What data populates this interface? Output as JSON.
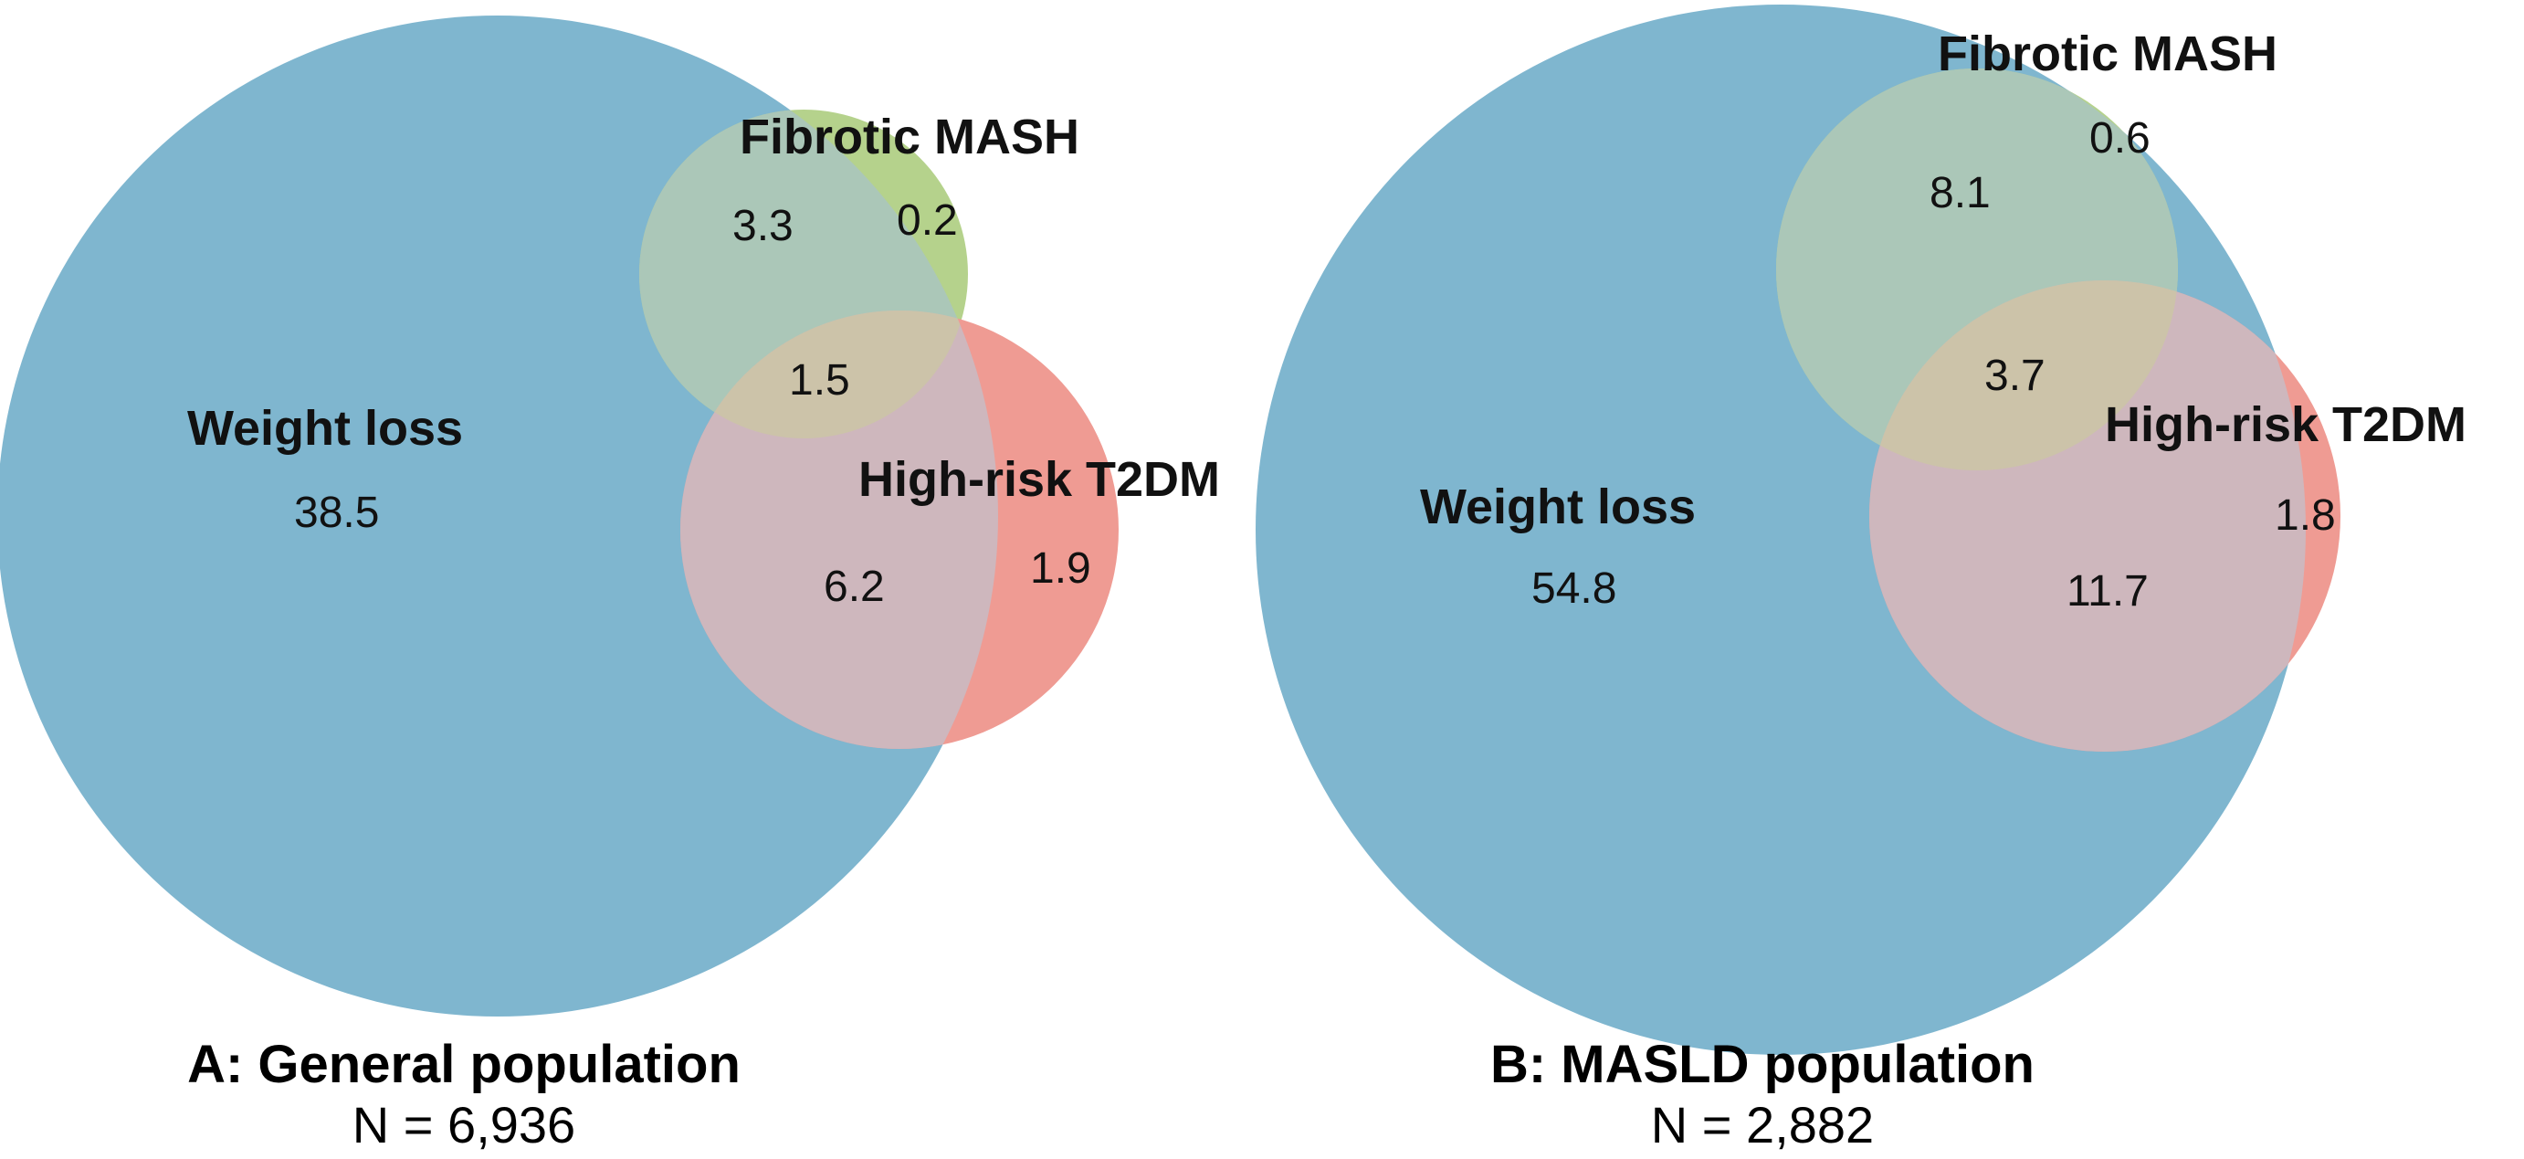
{
  "colors": {
    "weight_loss": "#7fb6cf",
    "fibrotic_mash": "#b5d28c",
    "high_risk_t2dm": "#ef9b93",
    "wl_fm_overlap": "#abc7b8",
    "wl_t2_overlap": "#ceb7bd",
    "triple_overlap": "#ccc3a9",
    "text": "#111111"
  },
  "panels": [
    {
      "title": "A: General population",
      "n": "N = 6,936",
      "sets": {
        "weight_loss": "Weight loss",
        "fibrotic_mash": "Fibrotic MASH",
        "high_risk_t2dm": "High-risk T2DM"
      },
      "regions": {
        "weight_loss_only": "38.5",
        "weight_loss_fibrotic": "3.3",
        "fibrotic_only": "0.2",
        "all_three": "1.5",
        "weight_loss_t2dm": "6.2",
        "t2dm_only": "1.9"
      }
    },
    {
      "title": "B: MASLD population",
      "n": "N = 2,882",
      "sets": {
        "weight_loss": "Weight loss",
        "fibrotic_mash": "Fibrotic MASH",
        "high_risk_t2dm": "High-risk T2DM"
      },
      "regions": {
        "weight_loss_only": "54.8",
        "weight_loss_fibrotic": "8.1",
        "fibrotic_only": "0.6",
        "all_three": "3.7",
        "weight_loss_t2dm": "11.7",
        "t2dm_only": "1.8"
      }
    }
  ]
}
